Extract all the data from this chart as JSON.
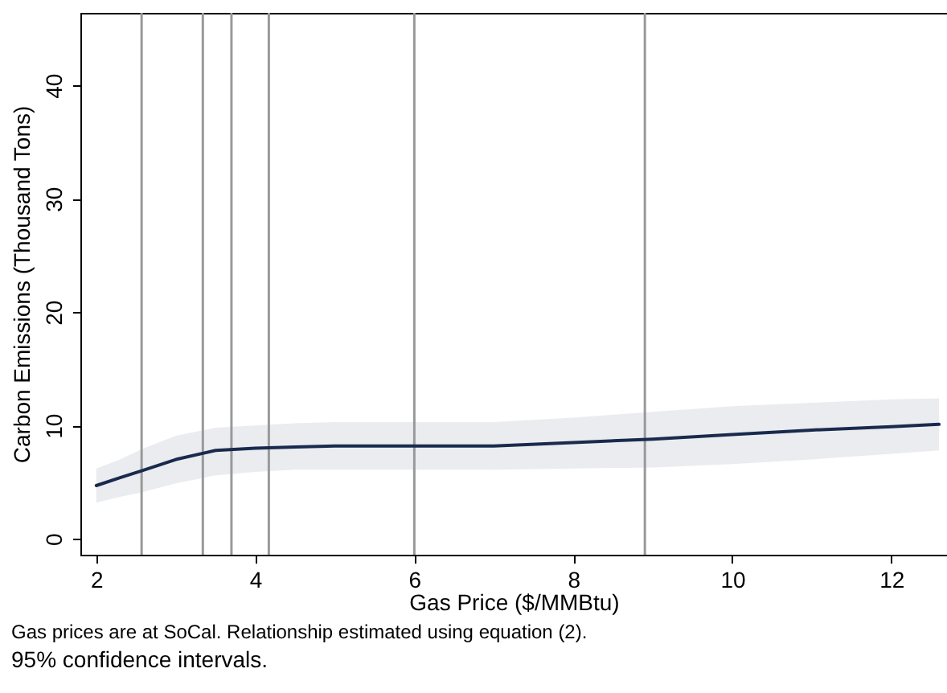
{
  "chart_data": {
    "type": "line",
    "xlabel": "Gas Price ($/MMBtu)",
    "ylabel": "Carbon Emissions (Thousand Tons)",
    "x": [
      2,
      2.3,
      2.57,
      3,
      3.5,
      4,
      4.5,
      5,
      6,
      7,
      8,
      9,
      10,
      11,
      12,
      12.6
    ],
    "series": [
      {
        "color": "#1a2a4e",
        "values": [
          4.7,
          5.4,
          6.0,
          7.0,
          7.8,
          8.0,
          8.1,
          8.2,
          8.2,
          8.2,
          8.5,
          8.8,
          9.2,
          9.6,
          9.9,
          10.1
        ],
        "lower": [
          3.2,
          3.7,
          4.1,
          4.9,
          5.6,
          5.9,
          6.1,
          6.1,
          6.1,
          6.1,
          6.2,
          6.3,
          6.6,
          7.0,
          7.5,
          7.8
        ],
        "upper": [
          6.2,
          7.0,
          7.9,
          9.1,
          9.8,
          10.0,
          10.2,
          10.3,
          10.3,
          10.3,
          10.7,
          11.2,
          11.7,
          12.0,
          12.3,
          12.4
        ]
      }
    ],
    "xlim": [
      1.8,
      12.7
    ],
    "ylim": [
      -1.4,
      46.4
    ],
    "xticks": [
      2,
      4,
      6,
      8,
      10,
      12
    ],
    "yticks": [
      0,
      10,
      20,
      30,
      40
    ],
    "grid": false,
    "ref_lines": [
      {
        "axis": "x",
        "value": 2.57,
        "color": "#999999"
      },
      {
        "axis": "x",
        "value": 3.34,
        "color": "#999999"
      },
      {
        "axis": "x",
        "value": 3.7,
        "color": "#999999"
      },
      {
        "axis": "x",
        "value": 4.17,
        "color": "#999999"
      },
      {
        "axis": "x",
        "value": 6.0,
        "color": "#999999"
      },
      {
        "axis": "x",
        "value": 8.9,
        "color": "#999999"
      }
    ],
    "annotations": [
      "Gas prices are at SoCal.  Relationship estimated using equation (2).",
      "95% confidence intervals."
    ]
  }
}
